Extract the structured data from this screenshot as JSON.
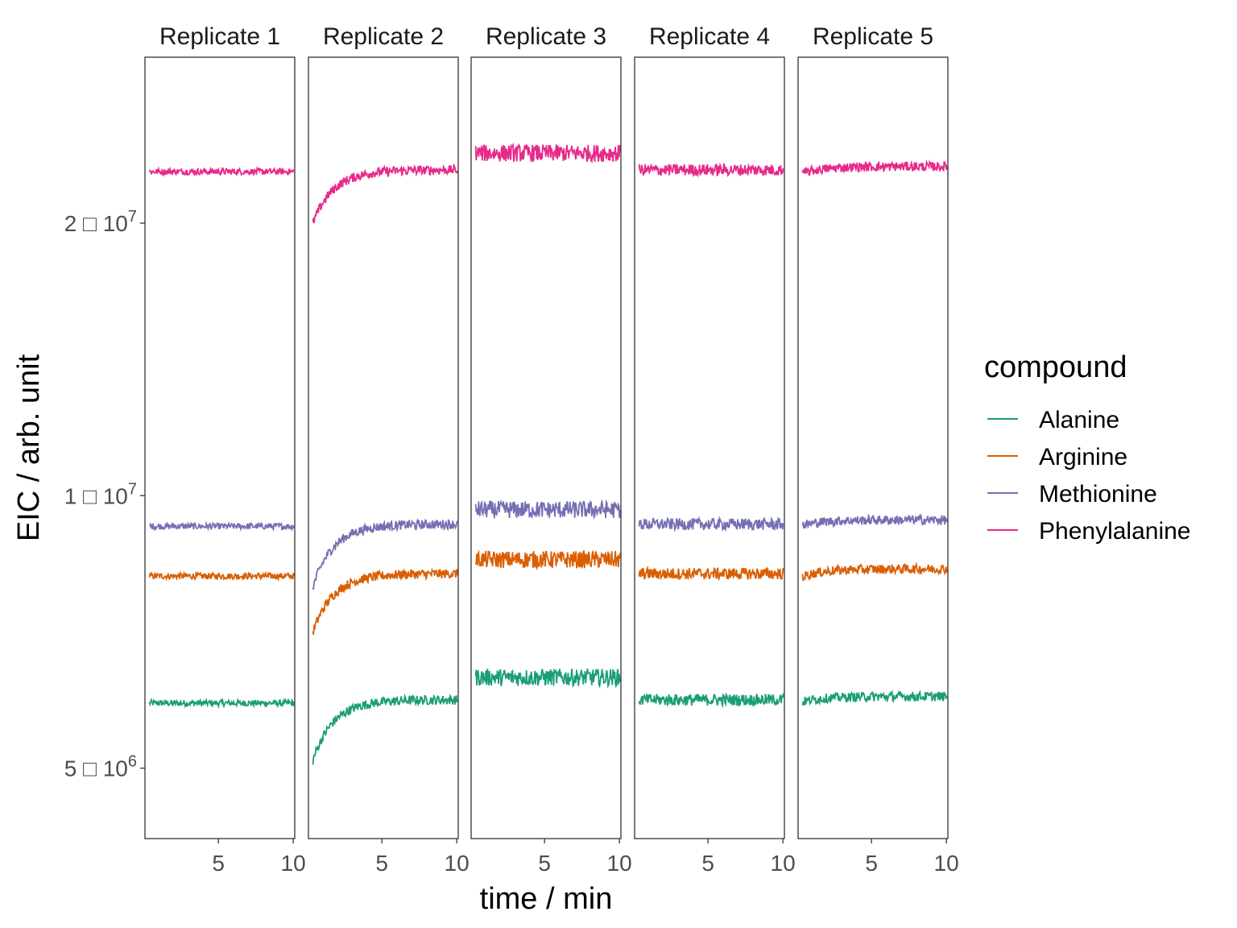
{
  "chart_data": {
    "type": "line",
    "facets": [
      "Replicate 1",
      "Replicate 2",
      "Replicate 3",
      "Replicate 4",
      "Replicate 5"
    ],
    "xlabel": "time / min",
    "ylabel": "EIC / arb. unit",
    "xlim": [
      0.1,
      10.1
    ],
    "xticks": [
      5,
      10
    ],
    "xtick_labels": [
      "5",
      "10"
    ],
    "ylim": [
      4180000,
      30500000
    ],
    "yscale": "log",
    "yticks": [
      {
        "value": 5000000,
        "mantissa": "5",
        "exponent": "6"
      },
      {
        "value": 10000000,
        "mantissa": "1",
        "exponent": "7"
      },
      {
        "value": 20000000,
        "mantissa": "2",
        "exponent": "7"
      }
    ],
    "grid": false,
    "legend": {
      "title": "compound",
      "position": "right"
    },
    "series": [
      {
        "name": "Alanine",
        "color": "#1B9E77",
        "levels": [
          {
            "start": 5900000,
            "end": 5900000
          },
          {
            "start": 4900000,
            "end": 5950000
          },
          {
            "start": 6300000,
            "end": 6300000
          },
          {
            "start": 5950000,
            "end": 5950000
          },
          {
            "start": 5900000,
            "end": 6000000
          }
        ]
      },
      {
        "name": "Arginine",
        "color": "#D95F02",
        "levels": [
          {
            "start": 8150000,
            "end": 8150000
          },
          {
            "start": 6800000,
            "end": 8200000
          },
          {
            "start": 8500000,
            "end": 8500000
          },
          {
            "start": 8200000,
            "end": 8200000
          },
          {
            "start": 8100000,
            "end": 8300000
          }
        ]
      },
      {
        "name": "Methionine",
        "color": "#7570B3",
        "levels": [
          {
            "start": 9250000,
            "end": 9250000
          },
          {
            "start": 7600000,
            "end": 9300000
          },
          {
            "start": 9650000,
            "end": 9650000
          },
          {
            "start": 9300000,
            "end": 9300000
          },
          {
            "start": 9250000,
            "end": 9400000
          }
        ]
      },
      {
        "name": "Phenylalanine",
        "color": "#E7298A",
        "levels": [
          {
            "start": 22800000,
            "end": 22800000
          },
          {
            "start": 19300000,
            "end": 22900000
          },
          {
            "start": 23900000,
            "end": 23900000
          },
          {
            "start": 22900000,
            "end": 22900000
          },
          {
            "start": 22600000,
            "end": 23100000
          }
        ]
      }
    ]
  }
}
